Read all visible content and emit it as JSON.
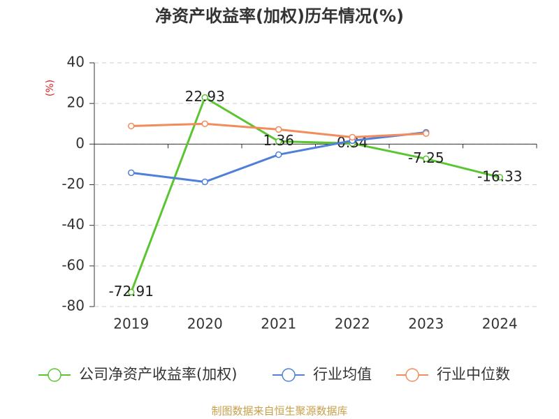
{
  "chart_data": {
    "type": "line",
    "title": "净资产收益率(加权)历年情况(%)",
    "y_label": "(%)",
    "footer": "制图数据来自恒生聚源数据库",
    "categories": [
      "2019",
      "2020",
      "2021",
      "2022",
      "2023",
      "2024"
    ],
    "series": [
      {
        "name": "公司净资产收益率(加权)",
        "color": "#5ac530",
        "values": [
          -72.91,
          22.93,
          1.36,
          0.34,
          -7.25,
          -16.33
        ],
        "show_labels": true
      },
      {
        "name": "行业均值",
        "color": "#4f7fd9",
        "values": [
          -14.1,
          -18.6,
          -5.2,
          1.7,
          5.8,
          null
        ]
      },
      {
        "name": "行业中位数",
        "color": "#f28c5c",
        "values": [
          8.9,
          10,
          7.2,
          3.4,
          5.2,
          null
        ]
      }
    ],
    "ylim": [
      -80,
      40
    ],
    "yticks": [
      -80,
      -60,
      -40,
      -20,
      0,
      20,
      40
    ],
    "grid": true
  }
}
